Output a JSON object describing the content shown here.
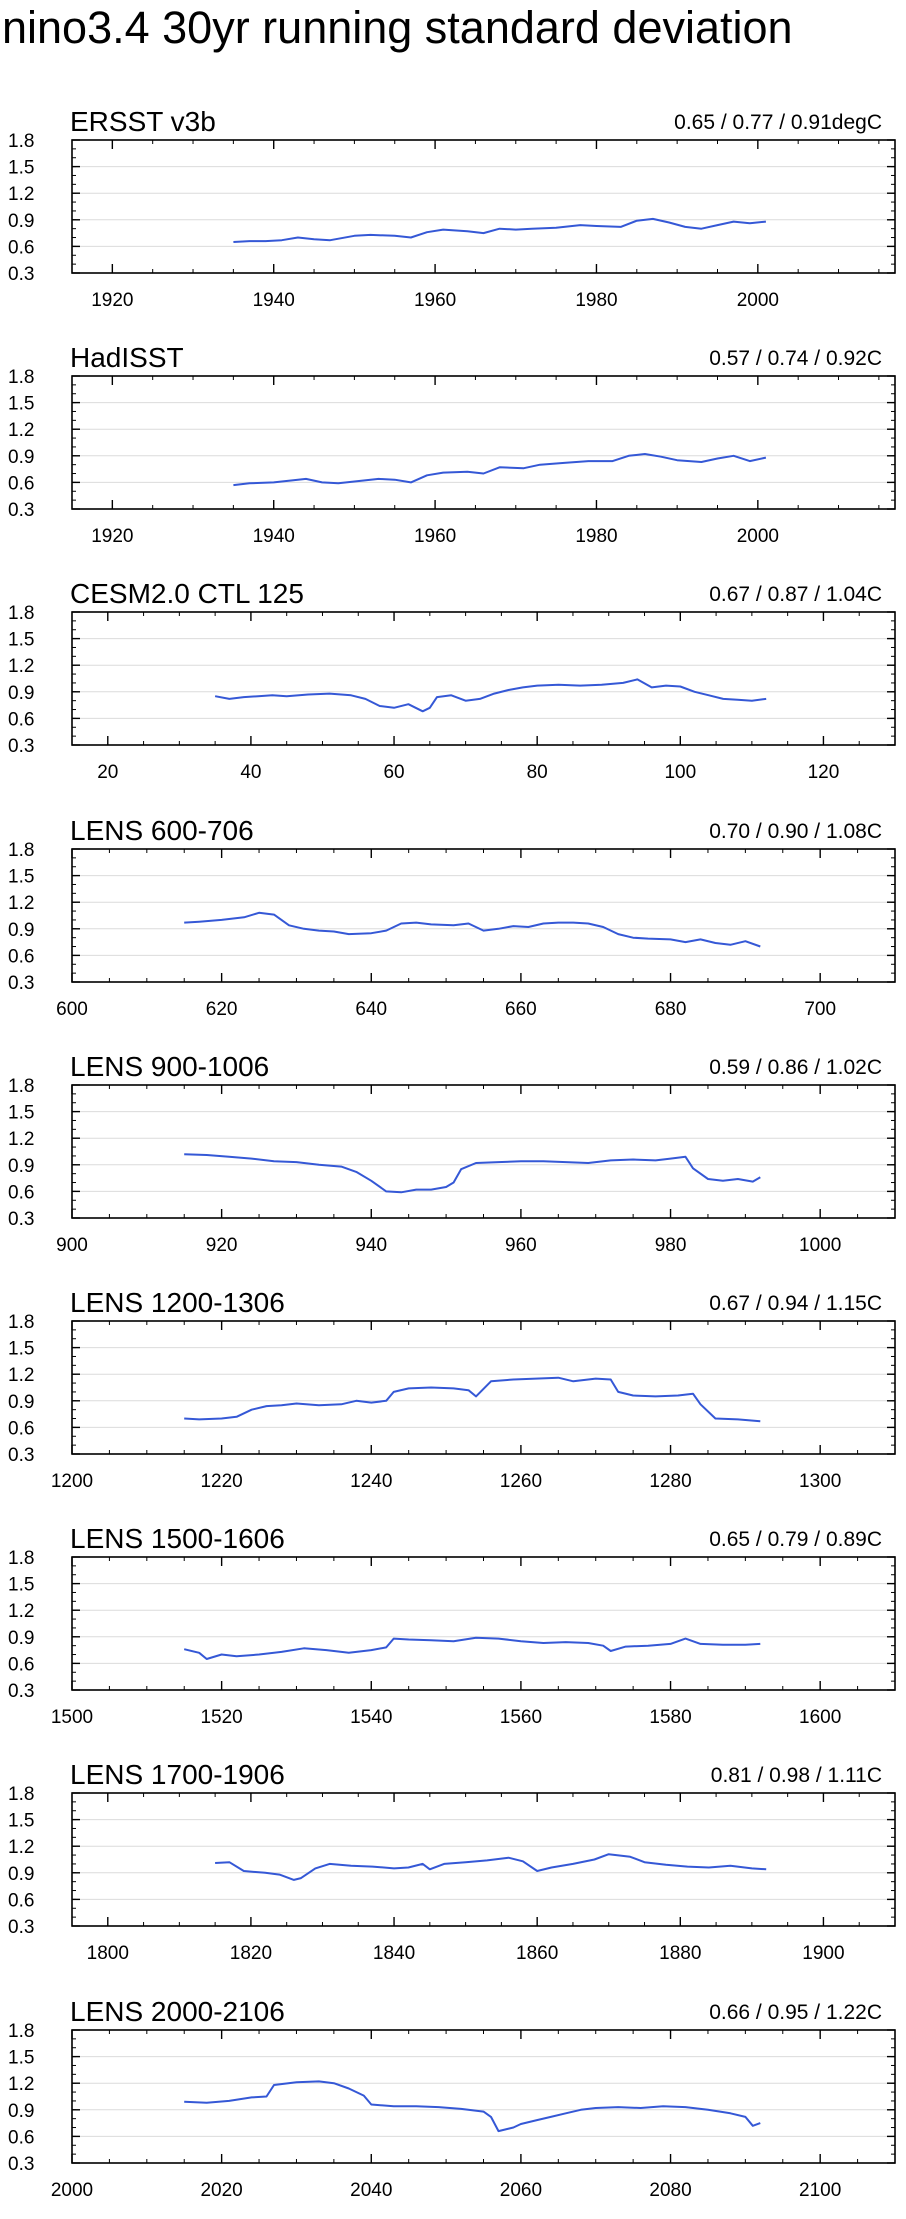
{
  "title": "nino3.4 30yr running standard deviation",
  "colors": {
    "line": "#3558d6",
    "grid": "#dcdcdc",
    "axis": "#000000"
  },
  "chart_data": [
    {
      "type": "line",
      "title": "ERSST v3b",
      "stats": "0.65 / 0.77 / 0.91degC",
      "xlim": [
        1915,
        2017
      ],
      "xticks": [
        1920,
        1940,
        1960,
        1980,
        2000
      ],
      "ylim": [
        0.3,
        1.8
      ],
      "yticks": [
        "0.3",
        "0.6",
        "0.9",
        "1.2",
        "1.5",
        "1.8"
      ],
      "grid": true,
      "series": [
        {
          "x": [
            1935,
            1937,
            1939,
            1941,
            1943,
            1945,
            1947,
            1950,
            1952,
            1955,
            1957,
            1959,
            1961,
            1964,
            1966,
            1968,
            1970,
            1972,
            1975,
            1978,
            1980,
            1983,
            1985,
            1987,
            1989,
            1991,
            1993,
            1995,
            1997,
            1999,
            2001
          ],
          "y": [
            0.65,
            0.66,
            0.66,
            0.67,
            0.7,
            0.68,
            0.67,
            0.72,
            0.73,
            0.72,
            0.7,
            0.76,
            0.79,
            0.77,
            0.75,
            0.8,
            0.79,
            0.8,
            0.81,
            0.84,
            0.83,
            0.82,
            0.89,
            0.91,
            0.87,
            0.82,
            0.8,
            0.84,
            0.88,
            0.86,
            0.88
          ]
        }
      ]
    },
    {
      "type": "line",
      "title": "HadISST",
      "stats": "0.57 / 0.74 / 0.92C",
      "xlim": [
        1915,
        2017
      ],
      "xticks": [
        1920,
        1940,
        1960,
        1980,
        2000
      ],
      "ylim": [
        0.3,
        1.8
      ],
      "yticks": [
        "0.3",
        "0.6",
        "0.9",
        "1.2",
        "1.5",
        "1.8"
      ],
      "grid": true,
      "series": [
        {
          "x": [
            1935,
            1937,
            1940,
            1942,
            1944,
            1946,
            1948,
            1951,
            1953,
            1955,
            1957,
            1959,
            1961,
            1964,
            1966,
            1968,
            1971,
            1973,
            1976,
            1979,
            1982,
            1984,
            1986,
            1988,
            1990,
            1993,
            1995,
            1997,
            1999,
            2001
          ],
          "y": [
            0.57,
            0.59,
            0.6,
            0.62,
            0.64,
            0.6,
            0.59,
            0.62,
            0.64,
            0.63,
            0.6,
            0.68,
            0.71,
            0.72,
            0.7,
            0.77,
            0.76,
            0.8,
            0.82,
            0.84,
            0.84,
            0.9,
            0.92,
            0.89,
            0.85,
            0.83,
            0.87,
            0.9,
            0.84,
            0.88
          ]
        }
      ]
    },
    {
      "type": "line",
      "title": "CESM2.0 CTL 125",
      "stats": "0.67 / 0.87 / 1.04C",
      "xlim": [
        15,
        130
      ],
      "xticks": [
        20,
        40,
        60,
        80,
        100,
        120
      ],
      "ylim": [
        0.3,
        1.8
      ],
      "yticks": [
        "0.3",
        "0.6",
        "0.9",
        "1.2",
        "1.5",
        "1.8"
      ],
      "grid": true,
      "series": [
        {
          "x": [
            35,
            37,
            39,
            41,
            43,
            45,
            48,
            51,
            54,
            56,
            58,
            60,
            62,
            64,
            65,
            66,
            68,
            70,
            72,
            74,
            76,
            78,
            80,
            83,
            86,
            89,
            92,
            94,
            96,
            98,
            100,
            102,
            104,
            106,
            108,
            110,
            112
          ],
          "y": [
            0.85,
            0.82,
            0.84,
            0.85,
            0.86,
            0.85,
            0.87,
            0.88,
            0.86,
            0.82,
            0.74,
            0.72,
            0.76,
            0.68,
            0.72,
            0.84,
            0.86,
            0.8,
            0.82,
            0.88,
            0.92,
            0.95,
            0.97,
            0.98,
            0.97,
            0.98,
            1.0,
            1.04,
            0.95,
            0.97,
            0.96,
            0.9,
            0.86,
            0.82,
            0.81,
            0.8,
            0.82
          ]
        }
      ]
    },
    {
      "type": "line",
      "title": "LENS 600-706",
      "stats": "0.70 / 0.90 / 1.08C",
      "xlim": [
        600,
        710
      ],
      "xticks": [
        600,
        620,
        640,
        660,
        680,
        700
      ],
      "ylim": [
        0.3,
        1.8
      ],
      "yticks": [
        "0.3",
        "0.6",
        "0.9",
        "1.2",
        "1.5",
        "1.8"
      ],
      "grid": true,
      "series": [
        {
          "x": [
            615,
            617,
            620,
            623,
            625,
            627,
            629,
            631,
            633,
            635,
            637,
            640,
            642,
            644,
            646,
            648,
            651,
            653,
            655,
            657,
            659,
            661,
            663,
            665,
            667,
            669,
            671,
            673,
            675,
            677,
            680,
            682,
            684,
            686,
            688,
            690,
            692
          ],
          "y": [
            0.97,
            0.98,
            1.0,
            1.03,
            1.08,
            1.06,
            0.94,
            0.9,
            0.88,
            0.87,
            0.84,
            0.85,
            0.88,
            0.96,
            0.97,
            0.95,
            0.94,
            0.96,
            0.88,
            0.9,
            0.93,
            0.92,
            0.96,
            0.97,
            0.97,
            0.96,
            0.92,
            0.84,
            0.8,
            0.79,
            0.78,
            0.75,
            0.78,
            0.74,
            0.72,
            0.76,
            0.7
          ]
        }
      ]
    },
    {
      "type": "line",
      "title": "LENS 900-1006",
      "stats": "0.59 / 0.86 / 1.02C",
      "xlim": [
        900,
        1010
      ],
      "xticks": [
        900,
        920,
        940,
        960,
        980,
        1000
      ],
      "ylim": [
        0.3,
        1.8
      ],
      "yticks": [
        "0.3",
        "0.6",
        "0.9",
        "1.2",
        "1.5",
        "1.8"
      ],
      "grid": true,
      "series": [
        {
          "x": [
            915,
            918,
            921,
            924,
            927,
            930,
            933,
            936,
            938,
            940,
            942,
            944,
            946,
            948,
            950,
            951,
            952,
            954,
            957,
            960,
            963,
            966,
            969,
            972,
            975,
            978,
            980,
            982,
            983,
            985,
            987,
            989,
            991,
            992
          ],
          "y": [
            1.02,
            1.01,
            0.99,
            0.97,
            0.94,
            0.93,
            0.9,
            0.88,
            0.82,
            0.72,
            0.6,
            0.59,
            0.62,
            0.62,
            0.65,
            0.7,
            0.85,
            0.92,
            0.93,
            0.94,
            0.94,
            0.93,
            0.92,
            0.95,
            0.96,
            0.95,
            0.97,
            0.99,
            0.86,
            0.74,
            0.72,
            0.74,
            0.71,
            0.76
          ]
        }
      ]
    },
    {
      "type": "line",
      "title": "LENS 1200-1306",
      "stats": "0.67 / 0.94 / 1.15C",
      "xlim": [
        1200,
        1310
      ],
      "xticks": [
        1200,
        1220,
        1240,
        1260,
        1280,
        1300
      ],
      "ylim": [
        0.3,
        1.8
      ],
      "yticks": [
        "0.3",
        "0.6",
        "0.9",
        "1.2",
        "1.5",
        "1.8"
      ],
      "grid": true,
      "series": [
        {
          "x": [
            1215,
            1217,
            1220,
            1222,
            1224,
            1226,
            1228,
            1230,
            1233,
            1236,
            1238,
            1240,
            1242,
            1243,
            1245,
            1248,
            1251,
            1253,
            1254,
            1256,
            1259,
            1262,
            1265,
            1267,
            1270,
            1272,
            1273,
            1275,
            1278,
            1281,
            1283,
            1284,
            1286,
            1289,
            1292
          ],
          "y": [
            0.7,
            0.69,
            0.7,
            0.72,
            0.8,
            0.84,
            0.85,
            0.87,
            0.85,
            0.86,
            0.9,
            0.88,
            0.9,
            1.0,
            1.04,
            1.05,
            1.04,
            1.02,
            0.95,
            1.12,
            1.14,
            1.15,
            1.16,
            1.12,
            1.15,
            1.14,
            1.0,
            0.96,
            0.95,
            0.96,
            0.98,
            0.86,
            0.7,
            0.69,
            0.67
          ]
        }
      ]
    },
    {
      "type": "line",
      "title": "LENS 1500-1606",
      "stats": "0.65 / 0.79 / 0.89C",
      "xlim": [
        1500,
        1610
      ],
      "xticks": [
        1500,
        1520,
        1540,
        1560,
        1580,
        1600
      ],
      "ylim": [
        0.3,
        1.8
      ],
      "yticks": [
        "0.3",
        "0.6",
        "0.9",
        "1.2",
        "1.5",
        "1.8"
      ],
      "grid": true,
      "series": [
        {
          "x": [
            1515,
            1517,
            1518,
            1520,
            1522,
            1525,
            1528,
            1531,
            1534,
            1537,
            1540,
            1542,
            1543,
            1545,
            1548,
            1551,
            1554,
            1557,
            1560,
            1563,
            1566,
            1569,
            1571,
            1572,
            1574,
            1577,
            1580,
            1582,
            1584,
            1587,
            1590,
            1592
          ],
          "y": [
            0.76,
            0.72,
            0.65,
            0.7,
            0.68,
            0.7,
            0.73,
            0.77,
            0.75,
            0.72,
            0.75,
            0.78,
            0.88,
            0.87,
            0.86,
            0.85,
            0.89,
            0.88,
            0.85,
            0.83,
            0.84,
            0.83,
            0.8,
            0.74,
            0.79,
            0.8,
            0.82,
            0.88,
            0.82,
            0.81,
            0.81,
            0.82
          ]
        }
      ]
    },
    {
      "type": "line",
      "title": "LENS 1700-1906",
      "stats": "0.81 / 0.98 / 1.11C",
      "xlim": [
        1795,
        1910
      ],
      "xticks": [
        1800,
        1820,
        1840,
        1860,
        1880,
        1900
      ],
      "ylim": [
        0.3,
        1.8
      ],
      "yticks": [
        "0.3",
        "0.6",
        "0.9",
        "1.2",
        "1.5",
        "1.8"
      ],
      "grid": true,
      "series": [
        {
          "x": [
            1815,
            1817,
            1819,
            1822,
            1824,
            1826,
            1827,
            1829,
            1831,
            1834,
            1837,
            1840,
            1842,
            1844,
            1845,
            1847,
            1850,
            1853,
            1856,
            1858,
            1860,
            1862,
            1865,
            1868,
            1870,
            1873,
            1875,
            1878,
            1881,
            1884,
            1887,
            1890,
            1892
          ],
          "y": [
            1.01,
            1.02,
            0.92,
            0.9,
            0.88,
            0.82,
            0.84,
            0.95,
            1.0,
            0.98,
            0.97,
            0.95,
            0.96,
            1.0,
            0.94,
            1.0,
            1.02,
            1.04,
            1.07,
            1.03,
            0.92,
            0.96,
            1.0,
            1.05,
            1.11,
            1.08,
            1.02,
            0.99,
            0.97,
            0.96,
            0.98,
            0.95,
            0.94
          ]
        }
      ]
    },
    {
      "type": "line",
      "title": "LENS 2000-2106",
      "stats": "0.66 / 0.95 / 1.22C",
      "xlim": [
        2000,
        2110
      ],
      "xticks": [
        2000,
        2020,
        2040,
        2060,
        2080,
        2100
      ],
      "ylim": [
        0.3,
        1.8
      ],
      "yticks": [
        "0.3",
        "0.6",
        "0.9",
        "1.2",
        "1.5",
        "1.8"
      ],
      "grid": true,
      "series": [
        {
          "x": [
            2015,
            2018,
            2021,
            2024,
            2026,
            2027,
            2030,
            2033,
            2035,
            2037,
            2039,
            2040,
            2043,
            2046,
            2049,
            2052,
            2055,
            2056,
            2057,
            2059,
            2060,
            2062,
            2064,
            2066,
            2068,
            2070,
            2073,
            2076,
            2079,
            2082,
            2085,
            2088,
            2090,
            2091,
            2092
          ],
          "y": [
            0.99,
            0.98,
            1.0,
            1.04,
            1.05,
            1.18,
            1.21,
            1.22,
            1.2,
            1.14,
            1.06,
            0.96,
            0.94,
            0.94,
            0.93,
            0.91,
            0.88,
            0.82,
            0.66,
            0.7,
            0.74,
            0.78,
            0.82,
            0.86,
            0.9,
            0.92,
            0.93,
            0.92,
            0.94,
            0.93,
            0.9,
            0.86,
            0.82,
            0.72,
            0.75
          ]
        }
      ]
    }
  ]
}
